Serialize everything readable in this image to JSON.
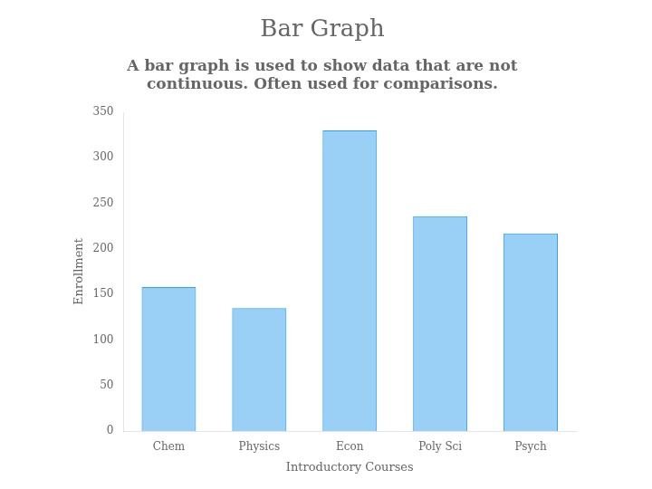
{
  "chart_data": {
    "type": "bar",
    "title": "Bar Graph",
    "subtitle": [
      "A bar graph is used to show data that are not",
      "continuous. Often used for comparisons."
    ],
    "categories": [
      "Chem",
      "Physics",
      "Econ",
      "Poly Sci",
      "Psych"
    ],
    "values": [
      158,
      135,
      330,
      236,
      217
    ],
    "xlabel": "Introductory Courses",
    "ylabel": "Enrollment",
    "ylim": [
      0,
      350
    ],
    "yticks": [
      0,
      50,
      100,
      150,
      200,
      250,
      300,
      350
    ],
    "grid": false
  }
}
